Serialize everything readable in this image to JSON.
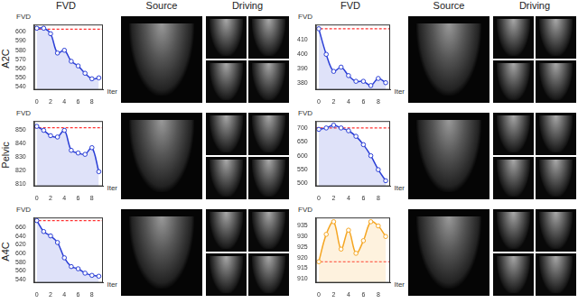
{
  "figure": {
    "column_headers": [
      "FVD",
      "Source",
      "Driving",
      "FVD",
      "Source",
      "Driving"
    ],
    "row_labels": [
      "A2C",
      "Pelvic",
      "A4C"
    ]
  },
  "chart_data": [
    {
      "type": "line",
      "y_label": "FVD",
      "x_label": "Iter",
      "x": [
        0,
        1,
        2,
        3,
        4,
        5,
        6,
        7,
        8,
        9
      ],
      "values": [
        604,
        604,
        598,
        577,
        580,
        568,
        563,
        555,
        549,
        550
      ],
      "color": "#2b3fd6",
      "marker": "circle",
      "reference_line": {
        "value": 603,
        "color": "#ff3030",
        "line_style": "dashed"
      },
      "xlim": [
        -0.4,
        9.6
      ],
      "xticks": [
        0,
        2,
        4,
        6,
        8
      ],
      "ylim": [
        537,
        608
      ],
      "yticks": [
        540,
        550,
        560,
        570,
        580,
        590,
        600
      ]
    },
    {
      "type": "line",
      "y_label": "FVD",
      "x_label": "Iter",
      "x": [
        0,
        1,
        2,
        3,
        4,
        5,
        6,
        7,
        8,
        9
      ],
      "values": [
        418,
        400,
        388,
        391,
        385,
        381,
        381,
        378,
        383,
        380
      ],
      "color": "#2b3fd6",
      "marker": "circle",
      "reference_line": {
        "value": 418,
        "color": "#ff3030",
        "line_style": "dashed"
      },
      "xlim": [
        -0.4,
        9.6
      ],
      "xticks": [
        0,
        2,
        4,
        6,
        8
      ],
      "ylim": [
        375,
        421
      ],
      "yticks": [
        380,
        390,
        400,
        410
      ]
    },
    {
      "type": "line",
      "y_label": "FVD",
      "x_label": "Iter",
      "x": [
        0,
        1,
        2,
        3,
        4,
        5,
        6,
        7,
        8,
        9
      ],
      "values": [
        853,
        850,
        846,
        845,
        850,
        835,
        833,
        832,
        837,
        819
      ],
      "color": "#2b3fd6",
      "marker": "circle",
      "reference_line": {
        "value": 852,
        "color": "#ff3030",
        "line_style": "dashed"
      },
      "xlim": [
        -0.4,
        9.6
      ],
      "xticks": [
        0,
        2,
        4,
        6,
        8
      ],
      "ylim": [
        808,
        857
      ],
      "yticks": [
        810,
        820,
        830,
        840,
        850
      ]
    },
    {
      "type": "line",
      "y_label": "FVD",
      "x_label": "Iter",
      "x": [
        0,
        1,
        2,
        3,
        4,
        5,
        6,
        7,
        8,
        9
      ],
      "values": [
        695,
        700,
        710,
        700,
        690,
        670,
        640,
        600,
        550,
        510
      ],
      "color": "#2b3fd6",
      "marker": "circle",
      "reference_line": {
        "value": 700,
        "color": "#ff3030",
        "line_style": "dashed"
      },
      "xlim": [
        -0.4,
        9.6
      ],
      "xticks": [
        0,
        2,
        4,
        6,
        8
      ],
      "ylim": [
        490,
        725
      ],
      "yticks": [
        500,
        550,
        600,
        650,
        700
      ]
    },
    {
      "type": "line",
      "y_label": "FVD",
      "x_label": "Iter",
      "x": [
        0,
        1,
        2,
        3,
        4,
        5,
        6,
        7,
        8,
        9
      ],
      "values": [
        675,
        650,
        640,
        625,
        590,
        570,
        565,
        555,
        550,
        548
      ],
      "color": "#2b3fd6",
      "marker": "circle",
      "reference_line": {
        "value": 675,
        "color": "#ff3030",
        "line_style": "dashed"
      },
      "xlim": [
        -0.4,
        9.6
      ],
      "xticks": [
        0,
        2,
        4,
        6,
        8
      ],
      "ylim": [
        533,
        682
      ],
      "yticks": [
        540,
        560,
        580,
        600,
        620,
        640,
        660
      ]
    },
    {
      "type": "line",
      "y_label": "FVD",
      "x_label": "Iter",
      "x": [
        0,
        1,
        2,
        3,
        4,
        5,
        6,
        7,
        8,
        9
      ],
      "values": [
        918,
        931,
        937,
        924,
        933,
        922,
        928,
        937,
        935,
        930
      ],
      "color": "#f5a623",
      "marker": "circle",
      "reference_line": {
        "value": 918,
        "color": "#ff3030",
        "line_style": "dashed"
      },
      "xlim": [
        -0.4,
        9.6
      ],
      "xticks": [
        0,
        2,
        4,
        6,
        8
      ],
      "ylim": [
        908,
        939
      ],
      "yticks": [
        910,
        915,
        920,
        925,
        930,
        935
      ]
    }
  ]
}
